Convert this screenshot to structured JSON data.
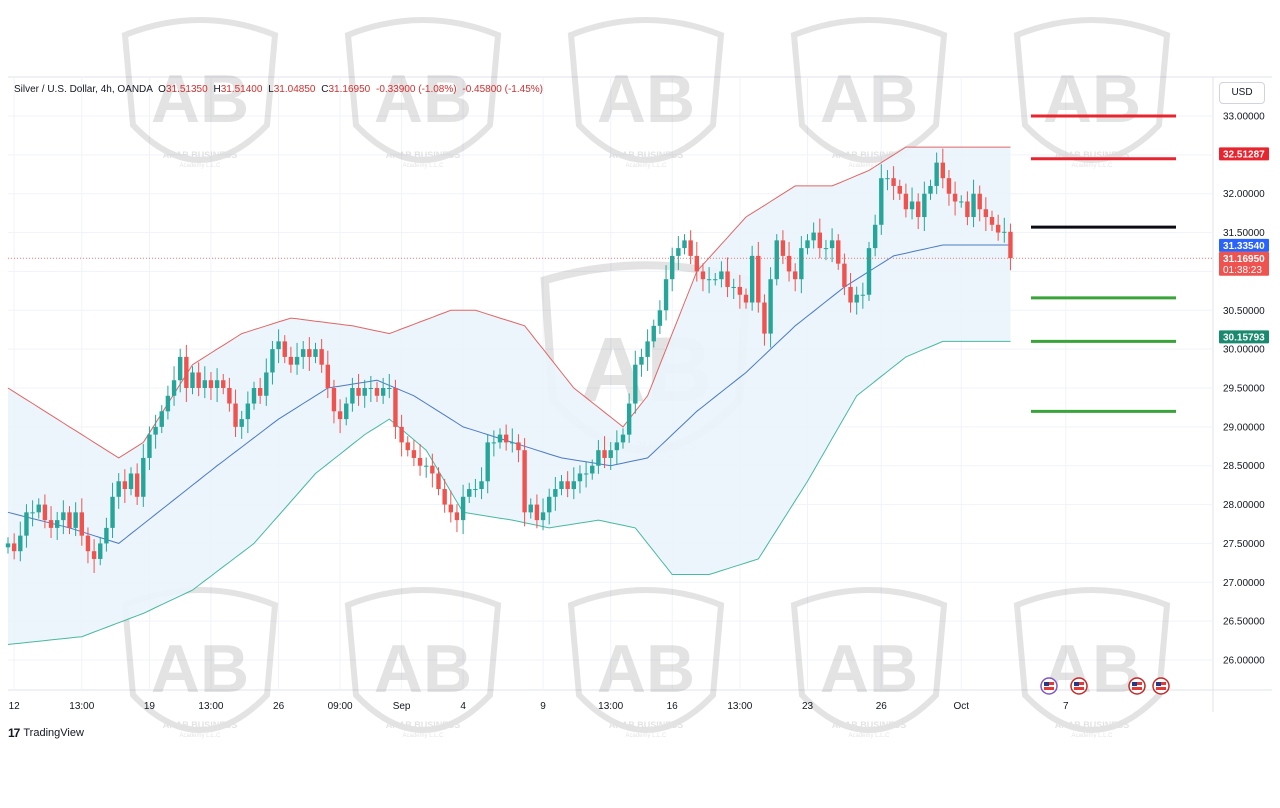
{
  "header": {
    "symbol": "Silver / U.S. Dollar, 4h, OANDA",
    "open_label": "O",
    "open": "31.51350",
    "high_label": "H",
    "high": "31.51400",
    "low_label": "L",
    "low": "31.04850",
    "close_label": "C",
    "close": "31.16950",
    "change": "-0.33900 (-1.08%)",
    "change2": "-0.45800 (-1.45%)"
  },
  "currency_button": "USD",
  "branding": {
    "tradingview": "TradingView",
    "watermark_line1": "ARAB BUSINESS",
    "watermark_line2": "Academy L.L.C"
  },
  "colors": {
    "up": "#26a69a",
    "down": "#ef5350",
    "bb_upper": "#e06666",
    "bb_lower": "#48b9a0",
    "bb_fill": "#eaf4fb",
    "ma": "#4a7ac7",
    "resistance": "#e8242f",
    "pivot": "#0b0b14",
    "support": "#3aa33a",
    "grid": "#f0f3fa"
  },
  "chart_data": {
    "type": "candlestick",
    "title": "Silver / U.S. Dollar, 4h, OANDA",
    "currency": "USD",
    "ylim": [
      25.6,
      33.3
    ],
    "y_ticks": [
      "33.00000",
      "32.50000",
      "32.00000",
      "31.50000",
      "31.00000",
      "30.50000",
      "30.00000",
      "29.50000",
      "29.00000",
      "28.50000",
      "28.00000",
      "27.50000",
      "27.00000",
      "26.50000",
      "26.00000"
    ],
    "x_tick_labels": [
      {
        "bar": 1,
        "label": "12"
      },
      {
        "bar": 12,
        "label": "13:00"
      },
      {
        "bar": 23,
        "label": "19"
      },
      {
        "bar": 33,
        "label": "13:00"
      },
      {
        "bar": 44,
        "label": "26"
      },
      {
        "bar": 54,
        "label": "09:00"
      },
      {
        "bar": 64,
        "label": "Sep"
      },
      {
        "bar": 74,
        "label": "4"
      },
      {
        "bar": 87,
        "label": "9"
      },
      {
        "bar": 98,
        "label": "13:00"
      },
      {
        "bar": 108,
        "label": "16"
      },
      {
        "bar": 119,
        "label": "13:00"
      },
      {
        "bar": 130,
        "label": "23"
      },
      {
        "bar": 142,
        "label": "26"
      },
      {
        "bar": 155,
        "label": "Oct"
      },
      {
        "bar": 172,
        "label": "7"
      }
    ],
    "candles_close": [
      27.5,
      27.4,
      27.6,
      27.9,
      27.9,
      28.0,
      27.8,
      27.7,
      27.8,
      27.9,
      27.7,
      27.9,
      27.6,
      27.4,
      27.3,
      27.5,
      27.7,
      28.1,
      28.3,
      28.2,
      28.4,
      28.1,
      28.6,
      28.9,
      29.0,
      29.2,
      29.4,
      29.6,
      29.9,
      29.5,
      29.7,
      29.5,
      29.6,
      29.5,
      29.6,
      29.5,
      29.3,
      29.0,
      29.1,
      29.3,
      29.5,
      29.4,
      29.7,
      30.0,
      30.1,
      29.9,
      29.8,
      29.9,
      30.0,
      29.9,
      30.0,
      29.8,
      29.5,
      29.2,
      29.1,
      29.3,
      29.5,
      29.4,
      29.5,
      29.5,
      29.4,
      29.5,
      29.5,
      29.0,
      28.8,
      28.7,
      28.6,
      28.5,
      28.5,
      28.4,
      28.2,
      28.0,
      27.9,
      27.8,
      28.1,
      28.2,
      28.2,
      28.3,
      28.8,
      28.8,
      28.9,
      28.8,
      28.8,
      28.7,
      27.9,
      28.0,
      27.8,
      27.9,
      28.1,
      28.2,
      28.3,
      28.2,
      28.3,
      28.4,
      28.4,
      28.5,
      28.7,
      28.6,
      28.7,
      28.8,
      28.9,
      29.3,
      29.8,
      29.9,
      30.1,
      30.3,
      30.5,
      30.9,
      31.2,
      31.3,
      31.4,
      31.2,
      31.0,
      30.9,
      30.9,
      30.9,
      31.0,
      30.8,
      30.8,
      30.7,
      30.6,
      31.2,
      30.6,
      30.2,
      30.9,
      31.4,
      31.2,
      31.0,
      30.9,
      31.3,
      31.4,
      31.5,
      31.3,
      31.3,
      31.4,
      31.1,
      30.8,
      30.6,
      30.7,
      30.7,
      31.3,
      31.6,
      32.2,
      32.2,
      32.1,
      32.0,
      31.8,
      31.9,
      31.7,
      32.0,
      32.1,
      32.4,
      32.2,
      32.0,
      31.9,
      31.9,
      31.7,
      32.0,
      31.8,
      31.7,
      31.6,
      31.5,
      31.51,
      31.17
    ],
    "bollinger_upper": [
      {
        "bar": 0,
        "value": 29.5
      },
      {
        "bar": 10,
        "value": 29.0
      },
      {
        "bar": 18,
        "value": 28.6
      },
      {
        "bar": 22,
        "value": 28.8
      },
      {
        "bar": 30,
        "value": 29.8
      },
      {
        "bar": 38,
        "value": 30.2
      },
      {
        "bar": 46,
        "value": 30.4
      },
      {
        "bar": 56,
        "value": 30.3
      },
      {
        "bar": 62,
        "value": 30.2
      },
      {
        "bar": 72,
        "value": 30.5
      },
      {
        "bar": 76,
        "value": 30.5
      },
      {
        "bar": 84,
        "value": 30.3
      },
      {
        "bar": 92,
        "value": 29.5
      },
      {
        "bar": 100,
        "value": 29.0
      },
      {
        "bar": 104,
        "value": 29.4
      },
      {
        "bar": 112,
        "value": 31.0
      },
      {
        "bar": 120,
        "value": 31.7
      },
      {
        "bar": 128,
        "value": 32.1
      },
      {
        "bar": 134,
        "value": 32.1
      },
      {
        "bar": 140,
        "value": 32.3
      },
      {
        "bar": 146,
        "value": 32.6
      },
      {
        "bar": 152,
        "value": 32.6
      }
    ],
    "bollinger_lower": [
      {
        "bar": 0,
        "value": 26.2
      },
      {
        "bar": 12,
        "value": 26.3
      },
      {
        "bar": 22,
        "value": 26.6
      },
      {
        "bar": 30,
        "value": 26.9
      },
      {
        "bar": 40,
        "value": 27.5
      },
      {
        "bar": 50,
        "value": 28.4
      },
      {
        "bar": 58,
        "value": 28.9
      },
      {
        "bar": 62,
        "value": 29.1
      },
      {
        "bar": 68,
        "value": 28.7
      },
      {
        "bar": 74,
        "value": 27.9
      },
      {
        "bar": 82,
        "value": 27.8
      },
      {
        "bar": 88,
        "value": 27.7
      },
      {
        "bar": 96,
        "value": 27.8
      },
      {
        "bar": 102,
        "value": 27.7
      },
      {
        "bar": 108,
        "value": 27.1
      },
      {
        "bar": 114,
        "value": 27.1
      },
      {
        "bar": 122,
        "value": 27.3
      },
      {
        "bar": 130,
        "value": 28.3
      },
      {
        "bar": 138,
        "value": 29.4
      },
      {
        "bar": 146,
        "value": 29.9
      },
      {
        "bar": 152,
        "value": 30.1
      }
    ],
    "moving_average": [
      {
        "bar": 0,
        "value": 27.9
      },
      {
        "bar": 10,
        "value": 27.7
      },
      {
        "bar": 18,
        "value": 27.5
      },
      {
        "bar": 26,
        "value": 28.0
      },
      {
        "bar": 34,
        "value": 28.5
      },
      {
        "bar": 44,
        "value": 29.1
      },
      {
        "bar": 52,
        "value": 29.5
      },
      {
        "bar": 60,
        "value": 29.6
      },
      {
        "bar": 66,
        "value": 29.4
      },
      {
        "bar": 74,
        "value": 29.0
      },
      {
        "bar": 82,
        "value": 28.8
      },
      {
        "bar": 90,
        "value": 28.6
      },
      {
        "bar": 98,
        "value": 28.5
      },
      {
        "bar": 104,
        "value": 28.6
      },
      {
        "bar": 112,
        "value": 29.2
      },
      {
        "bar": 120,
        "value": 29.7
      },
      {
        "bar": 128,
        "value": 30.3
      },
      {
        "bar": 136,
        "value": 30.8
      },
      {
        "bar": 144,
        "value": 31.2
      },
      {
        "bar": 152,
        "value": 31.34
      }
    ],
    "levels": {
      "resistance": [
        33.0,
        32.45
      ],
      "pivot": 31.57,
      "support": [
        30.66,
        30.1,
        29.2
      ]
    },
    "price_labels": [
      {
        "value": 32.51287,
        "text": "32.51287",
        "color": "#e8242f"
      },
      {
        "value": 31.3354,
        "text": "31.33540",
        "color": "#2962ff"
      },
      {
        "value": 31.1695,
        "text": "31.16950",
        "sub": "01:38:23",
        "color": "#ef5350"
      },
      {
        "value": 30.15793,
        "text": "30.15793",
        "color": "#1a8a6e"
      }
    ]
  }
}
